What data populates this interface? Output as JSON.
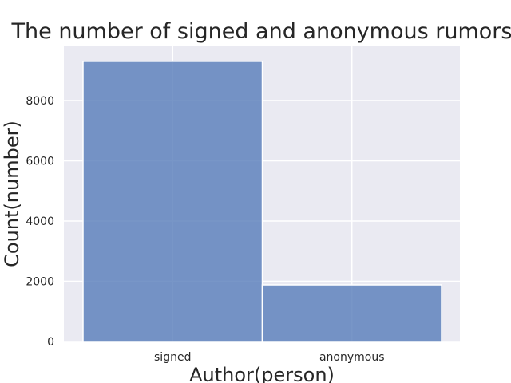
{
  "chart_data": {
    "type": "bar",
    "title": "The number of signed and anonymous rumors",
    "xlabel": "Author(person)",
    "ylabel": "Count(number)",
    "categories": [
      "signed",
      "anonymous"
    ],
    "values": [
      9300,
      1880
    ],
    "ylim": [
      0,
      9800
    ],
    "yticks": [
      0,
      2000,
      4000,
      6000,
      8000
    ],
    "grid": true,
    "colors": {
      "bar": "#5a7fbb",
      "background": "#eaeaf2",
      "grid": "#ffffff"
    }
  }
}
